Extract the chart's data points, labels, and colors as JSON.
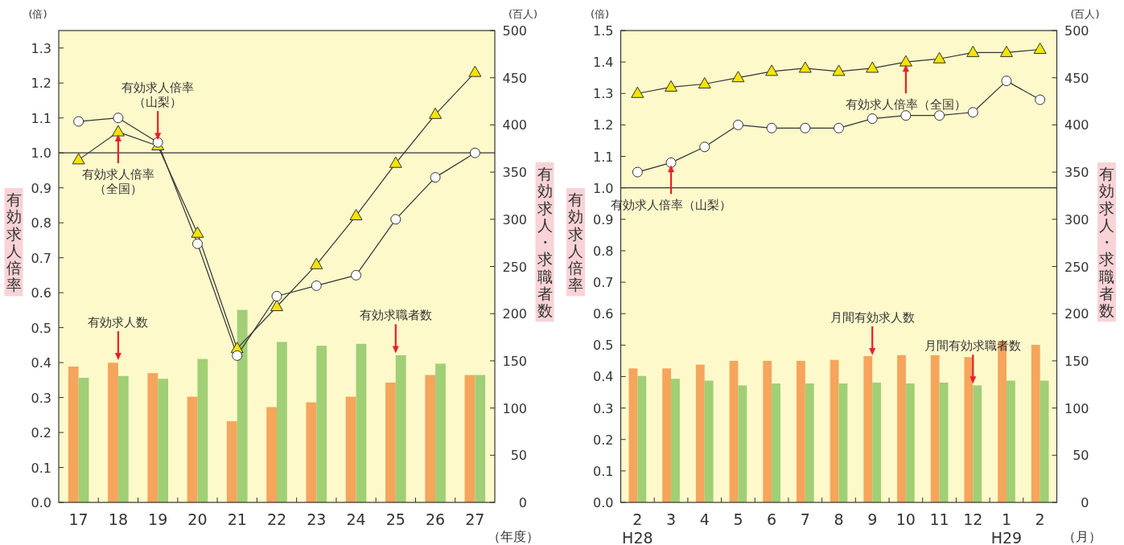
{
  "chart_data": [
    {
      "type": "bar",
      "xlabel": "（年度）",
      "ylabel": "有効求人倍率",
      "y2label": "有効求人・求職者数",
      "categories": [
        "17",
        "18",
        "19",
        "20",
        "21",
        "22",
        "23",
        "24",
        "25",
        "26",
        "27"
      ],
      "ylim": [
        0,
        1.35
      ],
      "yticks": [
        {
          "value": 0,
          "label": "0.0"
        },
        {
          "value": 0.1,
          "label": "0.1"
        },
        {
          "value": 0.2,
          "label": "0.2"
        },
        {
          "value": 0.3,
          "label": "0.3"
        },
        {
          "value": 0.4,
          "label": "0.4"
        },
        {
          "value": 0.5,
          "label": "0.5"
        },
        {
          "value": 0.6,
          "label": "0.6"
        },
        {
          "value": 0.7,
          "label": "0.7"
        },
        {
          "value": 0.8,
          "label": "0.8"
        },
        {
          "value": 0.9,
          "label": "0.9"
        },
        {
          "value": 1,
          "label": "1.0"
        },
        {
          "value": 1.1,
          "label": "1.1"
        },
        {
          "value": 1.2,
          "label": "1.2"
        },
        {
          "value": 1.3,
          "label": "1.3"
        }
      ],
      "y2lim": [
        0,
        500
      ],
      "y2ticks": [
        0,
        50,
        100,
        150,
        200,
        250,
        300,
        350,
        400,
        450,
        500
      ],
      "series": [
        {
          "type": "bar",
          "axis": "y2",
          "color": "#f5a55c",
          "values": [
            144,
            148,
            137,
            112,
            86,
            101,
            106,
            112,
            127,
            135,
            135
          ]
        },
        {
          "type": "bar",
          "axis": "y2",
          "color": "#a0cf76",
          "values": [
            132,
            134,
            131,
            152,
            204,
            170,
            166,
            168,
            156,
            147,
            135
          ]
        },
        {
          "type": "line",
          "axis": "y",
          "color": "#ffffff",
          "marker": "circle",
          "values": [
            1.09,
            1.1,
            1.03,
            0.74,
            0.42,
            0.59,
            0.62,
            0.65,
            0.81,
            0.93,
            1.0
          ]
        },
        {
          "type": "line",
          "axis": "y",
          "color": "#f5e400",
          "marker": "triangle",
          "values": [
            0.98,
            1.06,
            1.02,
            0.77,
            0.44,
            0.56,
            0.68,
            0.82,
            0.97,
            1.11,
            1.23
          ]
        }
      ],
      "ref_lines": [
        {
          "axis": "y",
          "value": 1
        }
      ],
      "annotations": [
        "(倍)",
        "(百人)",
        {
          "text": "有効求人倍率（山梨）",
          "x": "19",
          "y": 1.03
        },
        {
          "text": "有効求人倍率（全国）",
          "x": "18",
          "y": 1.06
        },
        {
          "text": "有効求人数",
          "x": "18",
          "y": 0.4
        },
        {
          "text": "有効求職者数",
          "x": "25",
          "y": 0.42
        }
      ]
    },
    {
      "type": "bar",
      "xlabel": "（月）",
      "ylabel": "有効求人倍率",
      "y2label": "有効求人・求職者数",
      "categories": [
        "2\nH28",
        "3",
        "4",
        "5",
        "6",
        "7",
        "8",
        "9",
        "10",
        "11",
        "12",
        "1\nH29",
        "2"
      ],
      "ylim": [
        0,
        1.5
      ],
      "yticks": [
        {
          "value": 0,
          "label": "0.0"
        },
        {
          "value": 0.1,
          "label": "0.1"
        },
        {
          "value": 0.2,
          "label": "0.2"
        },
        {
          "value": 0.3,
          "label": "0.3"
        },
        {
          "value": 0.4,
          "label": "0.4"
        },
        {
          "value": 0.5,
          "label": "0.5"
        },
        {
          "value": 0.6,
          "label": "0.6"
        },
        {
          "value": 0.7,
          "label": "0.7"
        },
        {
          "value": 0.8,
          "label": "0.8"
        },
        {
          "value": 0.9,
          "label": "0.9"
        },
        {
          "value": 1,
          "label": "1.0"
        },
        {
          "value": 1.1,
          "label": "1.1"
        },
        {
          "value": 1.2,
          "label": "1.2"
        },
        {
          "value": 1.3,
          "label": "1.3"
        },
        {
          "value": 1.4,
          "label": "1.4"
        },
        {
          "value": 1.5,
          "label": "1.5"
        }
      ],
      "y2lim": [
        0,
        500
      ],
      "y2ticks": [
        0,
        50,
        100,
        150,
        200,
        250,
        300,
        350,
        400,
        450,
        500
      ],
      "series": [
        {
          "type": "bar",
          "axis": "y2",
          "color": "#f5a55c",
          "values": [
            142,
            142,
            146,
            150,
            150,
            150,
            151,
            155,
            156,
            156,
            154,
            171,
            167
          ]
        },
        {
          "type": "bar",
          "axis": "y2",
          "color": "#a0cf76",
          "values": [
            134,
            131,
            129,
            124,
            126,
            126,
            126,
            127,
            126,
            127,
            124,
            129,
            129
          ]
        },
        {
          "type": "line",
          "axis": "y",
          "color": "#ffffff",
          "marker": "circle",
          "values": [
            1.05,
            1.08,
            1.13,
            1.2,
            1.19,
            1.19,
            1.19,
            1.22,
            1.23,
            1.23,
            1.24,
            1.34,
            1.28
          ]
        },
        {
          "type": "line",
          "axis": "y",
          "color": "#f5e400",
          "marker": "triangle",
          "values": [
            1.3,
            1.32,
            1.33,
            1.35,
            1.37,
            1.38,
            1.37,
            1.38,
            1.4,
            1.41,
            1.43,
            1.43,
            1.44
          ]
        }
      ],
      "ref_lines": [
        {
          "axis": "y",
          "value": 1
        }
      ],
      "annotations": [
        "(倍)",
        "(百人)",
        {
          "text": "有効求人倍率（全国）",
          "x": "10",
          "y": 1.4
        },
        {
          "text": "有効求人倍率（山梨）",
          "x": "3",
          "y": 1.08
        },
        {
          "text": "月間有効求人数",
          "x": "9",
          "y": 0.46
        },
        {
          "text": "月間有効求職者数",
          "x": "12",
          "y": 0.37
        }
      ]
    }
  ]
}
